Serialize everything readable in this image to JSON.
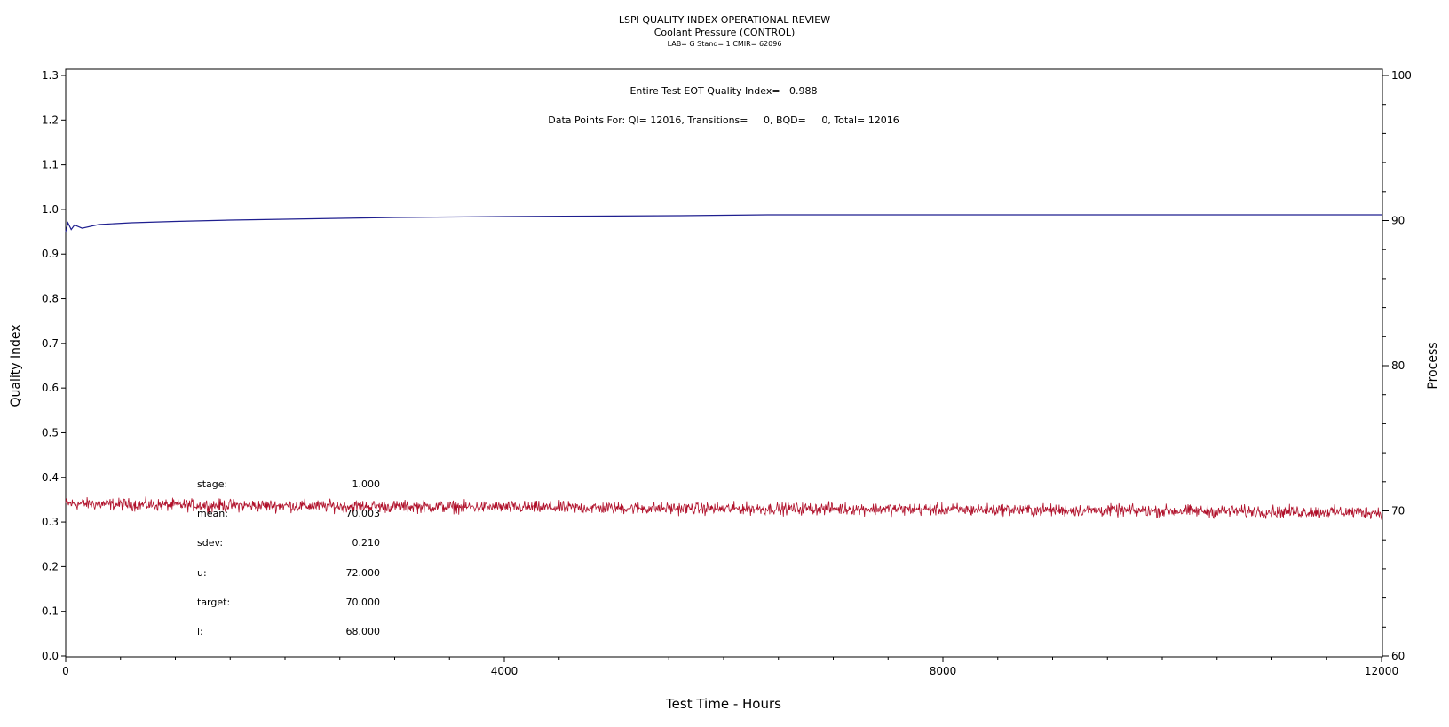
{
  "chart_data": {
    "type": "line",
    "title": "LSPI QUALITY INDEX OPERATIONAL REVIEW",
    "subtitle": "Coolant Pressure (CONTROL)",
    "subtitle2": "LAB= G Stand= 1 CMIR= 62096",
    "xlabel": "Test Time - Hours",
    "ylabel_left": "Quality Index",
    "ylabel_right": "Process",
    "xlim": [
      0,
      12000
    ],
    "ylim_left": [
      0.0,
      1.3
    ],
    "ylim_right": [
      60,
      100
    ],
    "x_ticks": [
      "0",
      "4000",
      "8000",
      "12000"
    ],
    "y_ticks_left": [
      "0.0",
      "0.1",
      "0.2",
      "0.3",
      "0.4",
      "0.5",
      "0.6",
      "0.7",
      "0.8",
      "0.9",
      "1.0",
      "1.1",
      "1.2",
      "1.3"
    ],
    "y_ticks_right": [
      "60",
      "70",
      "80",
      "90",
      "100"
    ],
    "annotations": {
      "quality_index": "Entire Test EOT Quality Index=   0.988",
      "data_points": "Data Points For: QI= 12016, Transitions=     0, BQD=     0, Total= 12016"
    },
    "stats": [
      {
        "label": "stage:",
        "value": "1.000"
      },
      {
        "label": "mean:",
        "value": "70.003"
      },
      {
        "label": "sdev:",
        "value": "0.210"
      },
      {
        "label": "u:",
        "value": "72.000"
      },
      {
        "label": "target:",
        "value": "70.000"
      },
      {
        "label": "l:",
        "value": "68.000"
      }
    ],
    "series": [
      {
        "axis": "left",
        "color": "#1f1f8f",
        "x": [
          0,
          20,
          50,
          80,
          150,
          300,
          600,
          1000,
          1500,
          2000,
          2500,
          3000,
          3500,
          4000,
          4800,
          5600,
          6400,
          7000,
          8000,
          9000,
          10000,
          11000,
          12000
        ],
        "values": [
          0.95,
          0.97,
          0.955,
          0.965,
          0.958,
          0.966,
          0.97,
          0.973,
          0.976,
          0.978,
          0.98,
          0.982,
          0.983,
          0.984,
          0.985,
          0.986,
          0.988,
          0.988,
          0.988,
          0.988,
          0.988,
          0.988,
          0.988
        ]
      },
      {
        "axis": "right",
        "color": "#b0102a",
        "noise_sdev": 0.21,
        "x": [
          0,
          1000,
          2000,
          3000,
          4000,
          5000,
          6000,
          7000,
          8000,
          9000,
          10000,
          11000,
          12000
        ],
        "values": [
          70.5,
          70.4,
          70.35,
          70.3,
          70.25,
          70.2,
          70.15,
          70.15,
          70.1,
          70.05,
          70.0,
          69.95,
          69.9
        ]
      }
    ]
  }
}
